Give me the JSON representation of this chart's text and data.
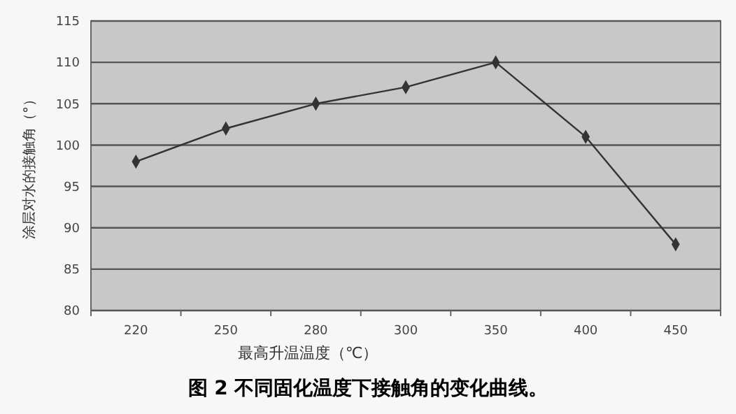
{
  "chart_data": {
    "type": "line",
    "xlabel": "最高升温温度（℃）",
    "ylabel": "涂层对水的接触角（°）",
    "annotations": [
      "图 2 不同固化温度下接触角的变化曲线。"
    ],
    "categories": [
      "220",
      "250",
      "280",
      "300",
      "350",
      "400",
      "450"
    ],
    "series": [
      {
        "color": "#333333",
        "values": [
          98,
          102,
          105,
          107,
          110,
          101,
          88
        ]
      }
    ],
    "ylim": [
      80,
      115
    ],
    "yticks": [
      80,
      85,
      90,
      95,
      100,
      105,
      110,
      115
    ],
    "grid": "y",
    "marker": "diamond",
    "line_style": "solid"
  }
}
